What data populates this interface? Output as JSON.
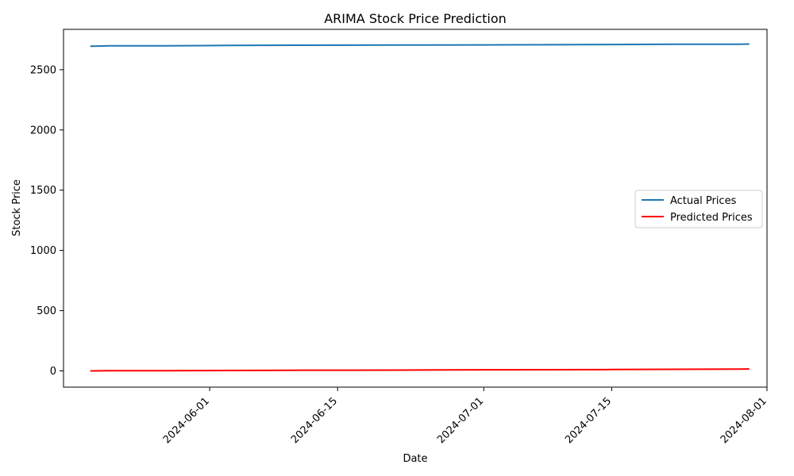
{
  "chart_data": {
    "type": "line",
    "title": "ARIMA Stock Price Prediction",
    "xlabel": "Date",
    "ylabel": "Stock Price",
    "x_ticks": [
      "2024-06-01",
      "2024-06-15",
      "2024-07-01",
      "2024-07-15",
      "2024-08-01"
    ],
    "y_ticks": [
      0,
      500,
      1000,
      1500,
      2000,
      2500
    ],
    "xlim": [
      "2024-05-16",
      "2024-08-01"
    ],
    "ylim": [
      -135,
      2835
    ],
    "grid": false,
    "legend": "center-right",
    "x": [
      "2024-05-19",
      "2024-05-21",
      "2024-05-27",
      "2024-06-03",
      "2024-06-10",
      "2024-06-17",
      "2024-06-24",
      "2024-07-01",
      "2024-07-08",
      "2024-07-15",
      "2024-07-22",
      "2024-07-29",
      "2024-07-30"
    ],
    "series": [
      {
        "name": "Actual Prices",
        "color": "#1f77b4",
        "values": [
          2695,
          2699,
          2699,
          2701,
          2703,
          2704,
          2705,
          2706,
          2707,
          2709,
          2711,
          2712,
          2713
        ]
      },
      {
        "name": "Predicted Prices",
        "color": "#ff0000",
        "values": [
          0,
          2,
          2,
          3,
          5,
          6,
          7,
          9,
          10,
          11,
          13,
          15,
          16
        ]
      }
    ]
  }
}
